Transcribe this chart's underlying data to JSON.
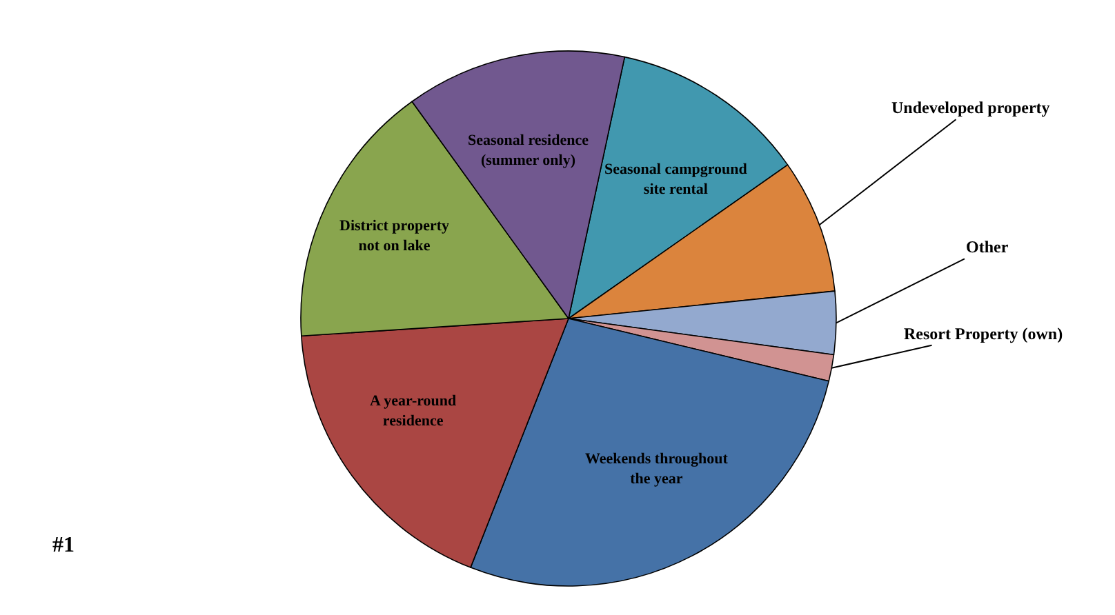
{
  "chart_data": {
    "type": "pie",
    "categories": [
      "Seasonal campground site rental",
      "Undeveloped property",
      "Other",
      "Resort Property (own)",
      "Weekends throughout the year",
      "A year-round residence",
      "District property not on lake",
      "Seasonal residence (summer only)"
    ],
    "values": [
      11.9,
      8.1,
      3.8,
      1.6,
      27.2,
      18.0,
      16.1,
      13.3
    ],
    "colors": [
      "#4198af",
      "#db843d",
      "#93a9cf",
      "#d19392",
      "#4572a7",
      "#aa4643",
      "#89a54e",
      "#71588f"
    ],
    "legend": false,
    "annotations": [
      "#1"
    ]
  }
}
